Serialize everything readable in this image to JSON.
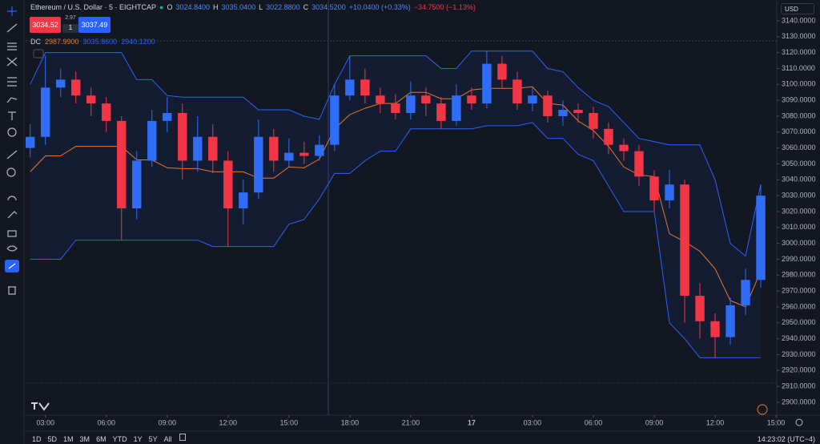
{
  "header": {
    "symbol": "Ethereum / U.S. Dollar · 5 · EIGHTCAP",
    "o_label": "O",
    "o_value": "3024.8400",
    "h_label": "H",
    "h_value": "3035.0400",
    "l_label": "L",
    "l_value": "3022.8800",
    "c_label": "C",
    "c_value": "3034.5200",
    "change": "+10.0400 (+0.33%)",
    "change2": "−34.7500 (−1.13%)"
  },
  "trade": {
    "sell": "3034.52",
    "spread": "2.97",
    "qty": "1",
    "buy": "3037.49"
  },
  "indicator_legend": {
    "name": "DC",
    "basis": "2987.9900",
    "upper": "3035.8600",
    "lower": "2940.1200"
  },
  "axis_header": "USD",
  "timeframes": [
    "1D",
    "5D",
    "1M",
    "3M",
    "6M",
    "YTD",
    "1Y",
    "5Y",
    "All"
  ],
  "clock": "14:23:02 (UTC−4)",
  "chart_data": {
    "type": "candlestick",
    "up_color": "#2f6df6",
    "down_color": "#f23645",
    "grid": false,
    "open": [
      3060,
      3067,
      3098,
      3103,
      3093,
      3088,
      3077,
      3022,
      3052,
      3077,
      3082,
      3052,
      3067,
      3052,
      3022,
      3032,
      3067,
      3052,
      3057,
      3055,
      3062,
      3093,
      3103,
      3093,
      3088,
      3082,
      3093,
      3088,
      3077,
      3093,
      3088,
      3113,
      3103,
      3088,
      3093,
      3080,
      3084,
      3082,
      3072,
      3062,
      3058,
      3042,
      3027,
      3037,
      2967,
      2951,
      2941,
      2961,
      2977
    ],
    "high": [
      3075,
      3118,
      3110,
      3108,
      3098,
      3092,
      3080,
      3058,
      3084,
      3092,
      3088,
      3080,
      3075,
      3058,
      3040,
      3078,
      3072,
      3066,
      3064,
      3068,
      3100,
      3118,
      3110,
      3098,
      3094,
      3102,
      3098,
      3092,
      3100,
      3098,
      3121,
      3118,
      3108,
      3098,
      3096,
      3090,
      3088,
      3086,
      3076,
      3066,
      3062,
      3046,
      3046,
      3040,
      2975,
      2956,
      2966,
      2984,
      3037
    ],
    "low": [
      3054,
      3062,
      3092,
      3088,
      3080,
      3070,
      3002,
      3015,
      3048,
      3070,
      3040,
      3045,
      3044,
      2998,
      3012,
      3028,
      3045,
      3048,
      3050,
      3052,
      3058,
      3090,
      3088,
      3082,
      3078,
      3078,
      3080,
      3072,
      3074,
      3084,
      3085,
      3098,
      3084,
      3083,
      3076,
      3074,
      3076,
      3066,
      3056,
      3052,
      3036,
      3020,
      3022,
      2950,
      2940,
      2928,
      2936,
      2955,
      2972
    ],
    "close": [
      3067,
      3098,
      3103,
      3093,
      3088,
      3077,
      3022,
      3052,
      3077,
      3082,
      3052,
      3067,
      3052,
      3022,
      3032,
      3067,
      3052,
      3057,
      3055,
      3062,
      3093,
      3103,
      3093,
      3088,
      3082,
      3093,
      3088,
      3077,
      3093,
      3088,
      3113,
      3103,
      3088,
      3093,
      3080,
      3084,
      3082,
      3072,
      3062,
      3058,
      3042,
      3027,
      3037,
      2967,
      2951,
      2941,
      2961,
      2977,
      3030
    ],
    "dc": {
      "channel_color": "#2962ff",
      "basis_color": "#e8762d",
      "upper": [
        3100,
        3120,
        3120,
        3120,
        3120,
        3120,
        3120,
        3103,
        3103,
        3093,
        3092,
        3092,
        3092,
        3092,
        3092,
        3084,
        3084,
        3084,
        3080,
        3078,
        3100,
        3118,
        3118,
        3118,
        3118,
        3118,
        3118,
        3110,
        3110,
        3121,
        3121,
        3121,
        3121,
        3121,
        3110,
        3108,
        3098,
        3090,
        3086,
        3076,
        3066,
        3064,
        3062,
        3062,
        3062,
        3040,
        3000,
        2992,
        3037
      ],
      "lower": [
        2990,
        2990,
        2990,
        3002,
        3002,
        3002,
        3002,
        3002,
        3002,
        3002,
        3002,
        3002,
        2998,
        2998,
        2998,
        2998,
        2998,
        3012,
        3015,
        3028,
        3044,
        3044,
        3052,
        3058,
        3058,
        3072,
        3072,
        3072,
        3072,
        3072,
        3074,
        3074,
        3074,
        3076,
        3066,
        3066,
        3056,
        3052,
        3036,
        3020,
        3020,
        3020,
        2950,
        2940,
        2928,
        2928,
        2928,
        2928,
        2928
      ],
      "basis": [
        3045,
        3055,
        3055,
        3061,
        3061,
        3061,
        3061,
        3052.5,
        3052.5,
        3047.5,
        3047,
        3047,
        3045,
        3045,
        3045,
        3041,
        3041,
        3048,
        3047.5,
        3053,
        3072,
        3081,
        3085,
        3088,
        3088,
        3095,
        3095,
        3091,
        3091,
        3096.5,
        3097.5,
        3097.5,
        3097.5,
        3098.5,
        3088,
        3087,
        3077,
        3071,
        3061,
        3048,
        3043,
        3042,
        3006,
        3001,
        2995,
        2984,
        2964,
        2960,
        2982.5
      ]
    },
    "xlim": [
      -0.3,
      49.05
    ],
    "xticks": [
      {
        "value": 1,
        "label": "03:00"
      },
      {
        "value": 5,
        "label": "06:00"
      },
      {
        "value": 9,
        "label": "09:00"
      },
      {
        "value": 13,
        "label": "12:00"
      },
      {
        "value": 17,
        "label": "15:00"
      },
      {
        "value": 21,
        "label": "18:00"
      },
      {
        "value": 25,
        "label": "21:00"
      },
      {
        "value": 29,
        "label": "17"
      },
      {
        "value": 33,
        "label": "03:00"
      },
      {
        "value": 37,
        "label": "06:00"
      },
      {
        "value": 41,
        "label": "09:00"
      },
      {
        "value": 45,
        "label": "12:00"
      },
      {
        "value": 49,
        "label": "15:00"
      }
    ],
    "ylim": [
      2891.9,
      3153.1
    ],
    "yticks": [
      {
        "value": 2900,
        "label": "2900.0000"
      },
      {
        "value": 2910,
        "label": "2910.0000"
      },
      {
        "value": 2920,
        "label": "2920.0000"
      },
      {
        "value": 2930,
        "label": "2930.0000"
      },
      {
        "value": 2940,
        "label": "2940.0000"
      },
      {
        "value": 2950,
        "label": "2950.0000"
      },
      {
        "value": 2960,
        "label": "2960.0000"
      },
      {
        "value": 2970,
        "label": "2970.0000"
      },
      {
        "value": 2980,
        "label": "2980.0000"
      },
      {
        "value": 2990,
        "label": "2990.0000"
      },
      {
        "value": 3000,
        "label": "3000.0000"
      },
      {
        "value": 3010,
        "label": "3010.0000"
      },
      {
        "value": 3020,
        "label": "3020.0000"
      },
      {
        "value": 3030,
        "label": "3030.0000"
      },
      {
        "value": 3040,
        "label": "3040.0000"
      },
      {
        "value": 3050,
        "label": "3050.0000"
      },
      {
        "value": 3060,
        "label": "3060.0000"
      },
      {
        "value": 3070,
        "label": "3070.0000"
      },
      {
        "value": 3080,
        "label": "3080.0000"
      },
      {
        "value": 3090,
        "label": "3090.0000"
      },
      {
        "value": 3100,
        "label": "3100.0000"
      },
      {
        "value": 3110,
        "label": "3110.0000"
      },
      {
        "value": 3120,
        "label": "3120.0000"
      },
      {
        "value": 3130,
        "label": "3130.0000"
      },
      {
        "value": 3140,
        "label": "3140.0000"
      }
    ]
  }
}
